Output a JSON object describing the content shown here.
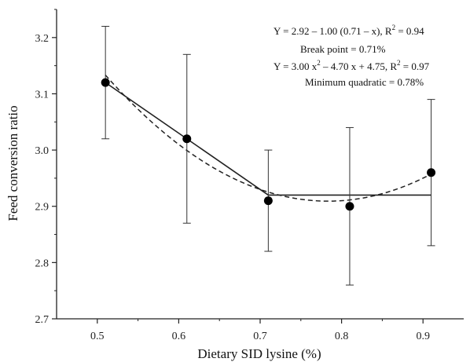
{
  "chart_data": {
    "type": "scatter",
    "xlabel": "Dietary SID lysine (%)",
    "ylabel": "Feed conversion ratio",
    "xlim": [
      0.45,
      0.95
    ],
    "ylim": [
      2.7,
      3.25
    ],
    "x_ticks": [
      0.5,
      0.6,
      0.7,
      0.8,
      0.9
    ],
    "x_tick_labels": [
      "0.5",
      "0.6",
      "0.7",
      "0.8",
      "0.9"
    ],
    "y_ticks": [
      2.7,
      2.8,
      2.9,
      3.0,
      3.1,
      3.2
    ],
    "y_tick_labels": [
      "2.7",
      "2.8",
      "2.9",
      "3.0",
      "3.1",
      "3.2"
    ],
    "grid": false,
    "points": [
      {
        "x": 0.51,
        "y": 3.12,
        "err_low": 3.02,
        "err_high": 3.22
      },
      {
        "x": 0.61,
        "y": 3.02,
        "err_low": 2.87,
        "err_high": 3.17
      },
      {
        "x": 0.71,
        "y": 2.91,
        "err_low": 2.82,
        "err_high": 3.0
      },
      {
        "x": 0.81,
        "y": 2.9,
        "err_low": 2.76,
        "err_high": 3.04
      },
      {
        "x": 0.91,
        "y": 2.96,
        "err_low": 2.83,
        "err_high": 3.09
      }
    ],
    "broken_line_fit": {
      "style": "solid",
      "plateau": 2.92,
      "slope": -1.0,
      "break_point": 0.71,
      "x_range": [
        0.51,
        0.91
      ]
    },
    "quadratic_fit": {
      "style": "dashed",
      "a": 3.0,
      "b": -4.7,
      "c": 4.75,
      "x_range": [
        0.51,
        0.91
      ]
    },
    "annotations": {
      "line1_main": "Y = 2.92 – 1.00 (0.71 – x), R",
      "line1_sup": "2",
      "line1_end": " = 0.94",
      "line2": "Break point = 0.71%",
      "line3_a": "Y = 3.00 x",
      "line3_sup1": "2",
      "line3_b": " – 4.70 x + 4.75, R",
      "line3_sup2": "2",
      "line3_end": " = 0.97",
      "line4": "Minimum quadratic = 0.78%"
    }
  }
}
